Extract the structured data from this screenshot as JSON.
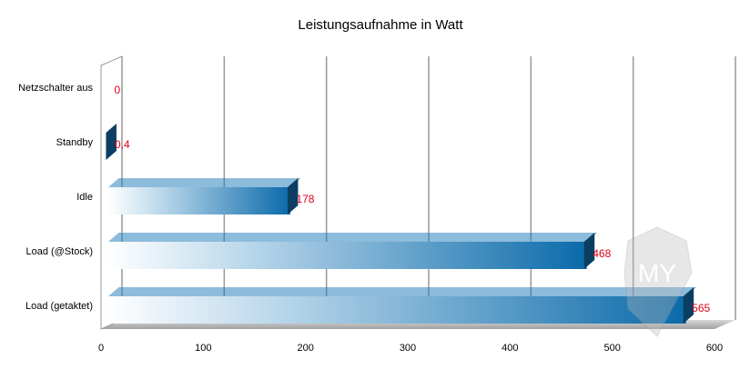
{
  "chart_data": {
    "type": "bar",
    "orientation": "horizontal",
    "title": "Leistungsaufnahme in Watt",
    "xlabel": "",
    "ylabel": "",
    "categories": [
      "Netzschalter aus",
      "Standby",
      "Idle",
      "Load (@Stock)",
      "Load (getaktet)"
    ],
    "values": [
      0,
      0.4,
      178,
      468,
      565
    ],
    "value_labels": [
      "0",
      "0,4",
      "178",
      "468",
      "565"
    ],
    "xlim": [
      0,
      600
    ],
    "xticks": [
      "0",
      "100",
      "200",
      "300",
      "400",
      "500",
      "600"
    ],
    "grid": true,
    "legend": "none",
    "colors": {
      "bar": "#0a6aaa",
      "bar_dark": "#0b3f62",
      "value_label": "#e0001a",
      "grid": "#999999",
      "floor": "#a8a8a8"
    }
  },
  "watermark": "MYC-MEDIA"
}
